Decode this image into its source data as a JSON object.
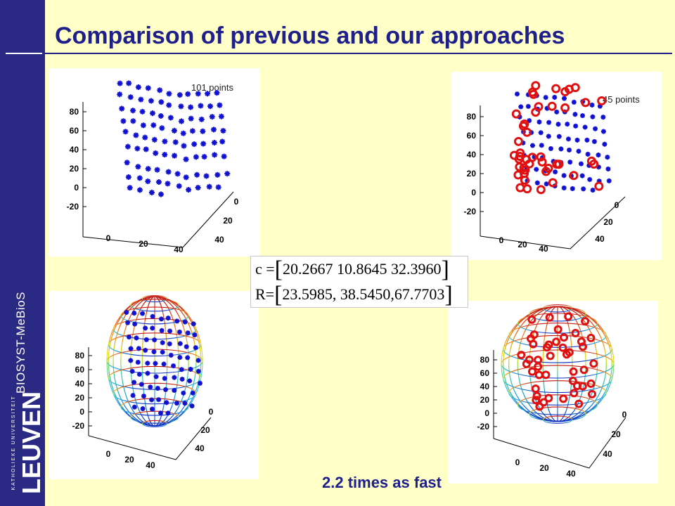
{
  "slide": {
    "title": "Comparison of previous and our approaches",
    "caption": "2.2 times as fast",
    "department": "BIOSYST-MeBioS",
    "university": {
      "small_text": "KATHOLIEKE UNIVERSITEIT",
      "big_text": "LEUVEN"
    }
  },
  "plots": {
    "top_left": {
      "points_label": "101 points",
      "marker_color": "#1010d0"
    },
    "top_right": {
      "points_label": "45 points",
      "marker_color": "#e01010"
    },
    "bottom_left": {
      "marker_color": "#1010d0"
    },
    "bottom_right": {
      "marker_color": "#e01010"
    },
    "z_ticks": [
      "80",
      "60",
      "40",
      "20",
      "0",
      "-20"
    ],
    "x_ticks": [
      "0",
      "20",
      "40"
    ],
    "y_ticks": [
      "0",
      "20",
      "40"
    ]
  },
  "formula": {
    "c_prefix": "c =",
    "c_values": "20.2667 10.8645  32.3960",
    "r_prefix": "R=",
    "r_values": "23.5985, 38.5450,67.7703"
  },
  "colors": {
    "sidebar": "#2a2a85",
    "background": "#ffffc8",
    "title": "#1f1f8c"
  }
}
